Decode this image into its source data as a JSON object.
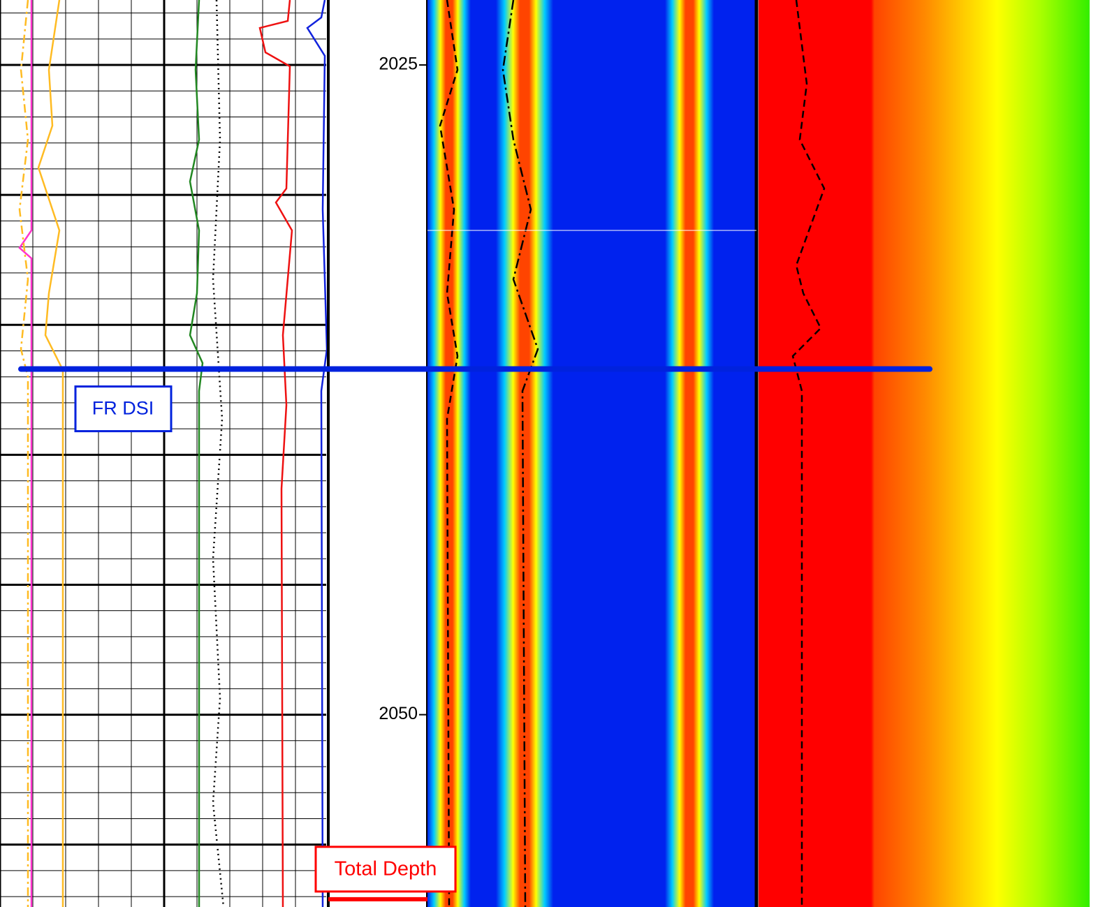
{
  "chart_data": {
    "type": "well-log",
    "ylim": [
      2022.5,
      2057.4
    ],
    "yticks": [
      2025,
      2050
    ],
    "markers": [
      {
        "label": "FR DSI",
        "depth": 2036.7,
        "color": "#0022dd"
      },
      {
        "label": "Total Depth",
        "depth": 2057.1,
        "color": "#ff0000"
      }
    ]
  }
}
